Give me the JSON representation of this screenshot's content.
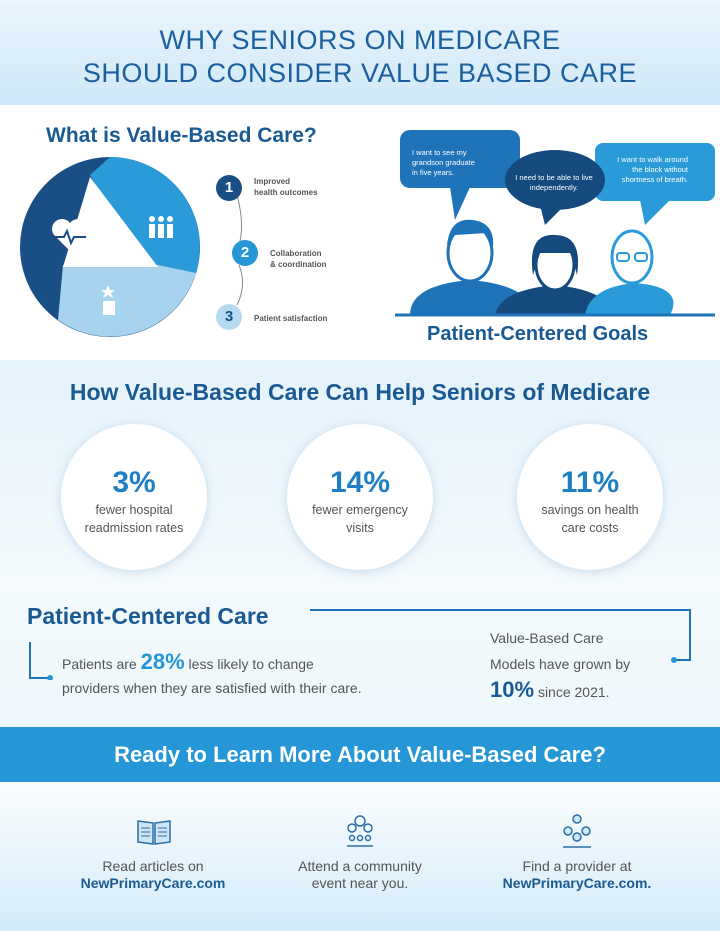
{
  "header": {
    "title_line1": "WHY SENIORS ON MEDICARE",
    "title_line2": "SHOULD CONSIDER VALUE BASED CARE"
  },
  "what": {
    "heading": "What is Value-Based Care?",
    "icons": [
      "heart-pulse-icon",
      "people-icon",
      "stars-hand-icon"
    ],
    "steps": [
      {
        "n": "1",
        "line1": "Improved",
        "line2": "health outcomes",
        "color": "#1a4f86"
      },
      {
        "n": "2",
        "line1": "Collaboration",
        "line2": "& coordination",
        "color": "#2596d6"
      },
      {
        "n": "3",
        "line1": "Patient satisfaction",
        "line2": "",
        "color": "#b5daf1"
      }
    ]
  },
  "goals": {
    "bubbles": [
      {
        "l1": "I want to see my",
        "l2": "grandson graduate",
        "l3": "in five years."
      },
      {
        "l1": "I need to be able to live",
        "l2": "independently.",
        "l3": ""
      },
      {
        "l1": "I want to walk around",
        "l2": "the block without",
        "l3": "shortness of breath."
      }
    ],
    "caption": "Patient-Centered Goals"
  },
  "help": {
    "heading": "How Value-Based Care Can Help Seniors of Medicare",
    "stats": [
      {
        "pct": "3%",
        "l1": "fewer hospital",
        "l2": "readmission rates"
      },
      {
        "pct": "14%",
        "l1": "fewer emergency",
        "l2": "visits"
      },
      {
        "pct": "11%",
        "l1": "savings on health",
        "l2": "care costs"
      }
    ]
  },
  "pcc": {
    "heading": "Patient-Centered Care",
    "left_pre": "Patients are",
    "left_pct": "28%",
    "left_post": "less likely to change",
    "left_line2": "providers when they are satisfied with their care.",
    "right_l1": "Value-Based Care",
    "right_l2": "Models have grown by",
    "right_pct": "10%",
    "right_post": "since 2021."
  },
  "banner": {
    "text": "Ready to Learn More About Value-Based Care?"
  },
  "footer": {
    "items": [
      {
        "icon": "book-icon",
        "l1": "Read articles on",
        "l2": "NewPrimaryCare.com"
      },
      {
        "icon": "community-icon",
        "l1": "Attend a community",
        "l2": "event near you."
      },
      {
        "icon": "provider-network-icon",
        "l1": "Find a provider at",
        "l2": "NewPrimaryCare.com."
      }
    ]
  },
  "colors": {
    "dark": "#1a4f86",
    "mid": "#2596d6",
    "light": "#b5daf1",
    "heading": "#1a5a93"
  }
}
